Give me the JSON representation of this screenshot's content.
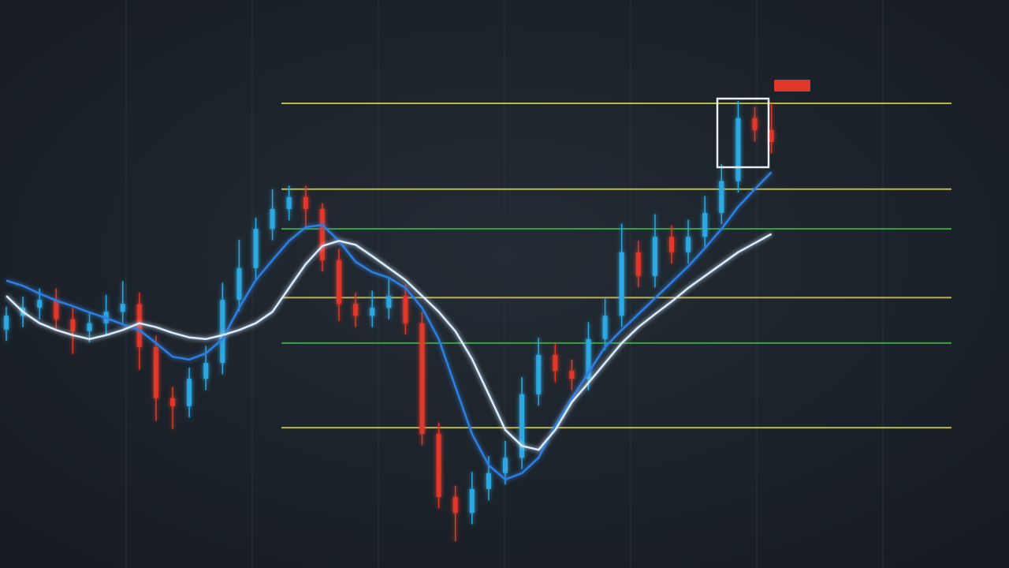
{
  "chart_data": {
    "type": "candlestick",
    "ylim": [
      0,
      100
    ],
    "up_color": "#2ea8e0",
    "down_color": "#e0392b",
    "categories": [
      null,
      null,
      null,
      null,
      null,
      null,
      null,
      null,
      null,
      null,
      null,
      null,
      null,
      null,
      null,
      null,
      null,
      null,
      null,
      null,
      null,
      null,
      null,
      null,
      null,
      null,
      null,
      null,
      null,
      null,
      null,
      null,
      null,
      null,
      null,
      null,
      null,
      null,
      null,
      null,
      null,
      null,
      null,
      null,
      null,
      null,
      null
    ],
    "open": [
      42.0,
      44.4,
      45.8,
      47.2,
      43.8,
      41.7,
      43.1,
      45.1,
      46.5,
      38.9,
      29.9,
      28.5,
      33.3,
      36.1,
      47.2,
      52.8,
      59.7,
      63.2,
      65.3,
      63.2,
      54.2,
      46.5,
      44.4,
      45.8,
      47.9,
      43.1,
      23.6,
      12.5,
      9.7,
      13.9,
      16.7,
      19.4,
      30.6,
      37.5,
      34.7,
      33.3,
      40.3,
      44.4,
      55.6,
      51.4,
      58.3,
      55.6,
      58.3,
      62.5,
      68.1,
      79.2,
      77.1
    ],
    "high": [
      46.0,
      47.8,
      49.2,
      49.2,
      45.8,
      45.1,
      48.1,
      50.5,
      48.5,
      40.9,
      31.9,
      35.3,
      39.1,
      50.2,
      57.8,
      61.7,
      66.7,
      67.3,
      67.3,
      64.2,
      56.2,
      48.5,
      48.8,
      50.9,
      49.9,
      45.1,
      25.6,
      14.5,
      16.9,
      19.7,
      22.4,
      33.6,
      40.5,
      39.5,
      36.7,
      43.3,
      47.4,
      60.6,
      57.6,
      62.3,
      60.3,
      61.3,
      65.5,
      71.1,
      82.2,
      81.2,
      81.8
    ],
    "low": [
      40.0,
      42.4,
      43.8,
      41.8,
      37.7,
      39.7,
      41.1,
      43.1,
      34.9,
      25.9,
      24.5,
      26.5,
      31.3,
      34.1,
      45.2,
      50.8,
      57.7,
      61.2,
      60.2,
      52.2,
      43.5,
      42.4,
      42.4,
      43.8,
      41.1,
      21.6,
      10.5,
      4.7,
      7.7,
      11.9,
      14.7,
      17.4,
      28.6,
      32.7,
      31.3,
      31.3,
      38.3,
      42.4,
      49.4,
      49.4,
      53.6,
      53.6,
      56.3,
      60.5,
      66.1,
      75.1,
      73.0
    ],
    "close": [
      44.4,
      45.8,
      47.2,
      43.8,
      41.7,
      43.1,
      45.1,
      46.5,
      38.9,
      29.9,
      28.5,
      33.3,
      36.1,
      47.2,
      52.8,
      59.7,
      63.2,
      65.3,
      63.2,
      54.2,
      46.5,
      44.4,
      45.8,
      47.9,
      43.1,
      23.6,
      12.5,
      9.7,
      13.9,
      16.7,
      19.4,
      30.6,
      37.5,
      34.7,
      33.3,
      40.3,
      44.4,
      55.6,
      51.4,
      58.3,
      55.6,
      58.3,
      62.5,
      68.1,
      79.2,
      77.1,
      75.0
    ],
    "lines": [
      {
        "color": "#2f7fe0",
        "values": [
          50.6,
          49.7,
          48.3,
          47.1,
          46.1,
          45.0,
          44.0,
          42.9,
          41.9,
          39.6,
          37.2,
          36.7,
          37.8,
          40.3,
          45.8,
          50.7,
          54.2,
          57.6,
          60.0,
          60.4,
          57.6,
          53.9,
          52.1,
          51.1,
          49.3,
          45.8,
          40.3,
          31.9,
          23.6,
          18.1,
          15.6,
          16.7,
          19.4,
          25.0,
          29.9,
          34.4,
          38.9,
          41.9,
          44.7,
          47.5,
          50.3,
          53.1,
          56.3,
          59.7,
          63.6,
          66.7,
          69.7
        ]
      },
      {
        "color": "#d8ecff",
        "values": [
          47.9,
          45.1,
          43.1,
          41.9,
          41.0,
          40.3,
          41.0,
          41.9,
          43.1,
          42.4,
          41.4,
          40.6,
          40.3,
          41.0,
          41.9,
          43.1,
          45.1,
          49.3,
          53.5,
          56.7,
          57.6,
          56.9,
          54.9,
          52.8,
          50.7,
          47.9,
          45.1,
          41.7,
          36.8,
          30.6,
          24.3,
          21.5,
          20.8,
          24.3,
          29.2,
          32.6,
          36.1,
          39.6,
          42.4,
          44.7,
          46.9,
          49.3,
          51.4,
          53.5,
          55.6,
          57.2,
          58.8
        ]
      }
    ],
    "levels": [
      {
        "value": 81.8,
        "color": "#c8cc4a"
      },
      {
        "value": 66.7,
        "color": "#c8cc4a"
      },
      {
        "value": 59.7,
        "color": "#3cb043"
      },
      {
        "value": 47.6,
        "color": "#c8bf5a"
      },
      {
        "value": 39.6,
        "color": "#3cb043"
      },
      {
        "value": 24.7,
        "color": "#c8c84a"
      }
    ]
  }
}
